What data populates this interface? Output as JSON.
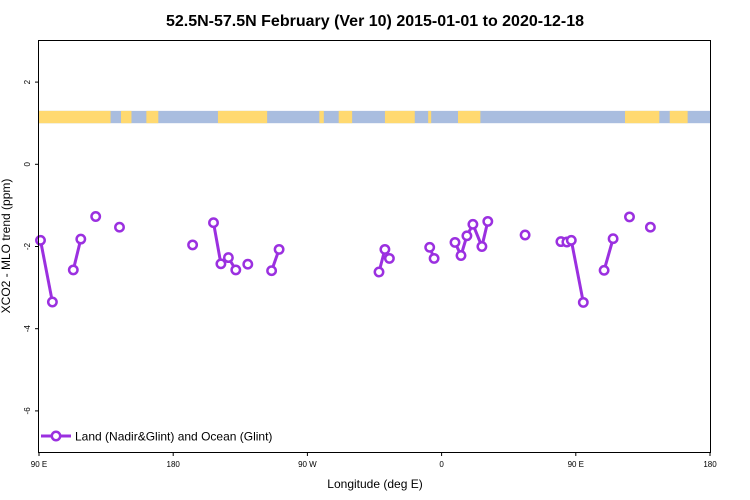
{
  "chart_data": {
    "type": "line",
    "title": "52.5N-57.5N February (Ver 10)   2015-01-01 to 2020-12-18",
    "xlabel": "Longitude (deg E)",
    "ylabel": "XCO2 - MLO trend (ppm)",
    "xlim": [
      90,
      540
    ],
    "ylim": [
      -7,
      3
    ],
    "x_ticks": [
      {
        "value": 90,
        "label": "90 E"
      },
      {
        "value": 180,
        "label": "180"
      },
      {
        "value": 270,
        "label": "90 W"
      },
      {
        "value": 360,
        "label": "0"
      },
      {
        "value": 450,
        "label": "90 E"
      },
      {
        "value": 540,
        "label": "180"
      }
    ],
    "y_ticks": [
      {
        "value": 2,
        "label": "2"
      },
      {
        "value": 0,
        "label": "0"
      },
      {
        "value": -2,
        "label": "-2"
      },
      {
        "value": -4,
        "label": "-4"
      },
      {
        "value": -6,
        "label": "-6"
      }
    ],
    "grid": false,
    "legend_position": "bottom-left",
    "series": [
      {
        "name": "Land (Nadir&Glint) and Ocean (Glint)",
        "color": "#9b30e0",
        "segments": [
          [
            [
              91,
              -1.85
            ],
            [
              99,
              -3.35
            ]
          ],
          [
            [
              113,
              -2.57
            ],
            [
              118,
              -1.82
            ]
          ],
          [
            [
              128,
              -1.27
            ]
          ],
          [
            [
              144,
              -1.53
            ]
          ],
          [
            [
              193,
              -1.96
            ]
          ],
          [
            [
              207,
              -1.42
            ],
            [
              212,
              -2.42
            ],
            [
              217,
              -2.27
            ],
            [
              222,
              -2.57
            ]
          ],
          [
            [
              230,
              -2.43
            ]
          ],
          [
            [
              246,
              -2.59
            ],
            [
              251,
              -2.07
            ]
          ],
          [
            [
              318,
              -2.62
            ],
            [
              322,
              -2.07
            ],
            [
              325,
              -2.29
            ]
          ],
          [
            [
              352,
              -2.02
            ],
            [
              355,
              -2.29
            ]
          ],
          [
            [
              369,
              -1.9
            ],
            [
              373,
              -2.22
            ],
            [
              377,
              -1.74
            ],
            [
              381,
              -1.46
            ],
            [
              387,
              -2.0
            ],
            [
              391,
              -1.39
            ]
          ],
          [
            [
              416,
              -1.72
            ]
          ],
          [
            [
              440,
              -1.88
            ],
            [
              444,
              -1.89
            ],
            [
              447,
              -1.85
            ],
            [
              455,
              -3.36
            ]
          ],
          [
            [
              469,
              -2.58
            ],
            [
              475,
              -1.81
            ]
          ],
          [
            [
              486,
              -1.28
            ]
          ],
          [
            [
              500,
              -1.53
            ]
          ]
        ]
      }
    ],
    "land_ocean_strip": {
      "y_range": [
        1.0,
        1.3
      ],
      "land_color": "#ffd970",
      "ocean_color": "#a9bddf",
      "land_intervals": [
        [
          90,
          138
        ],
        [
          145,
          152
        ],
        [
          162,
          170
        ],
        [
          210,
          243
        ],
        [
          278,
          281
        ],
        [
          291,
          300
        ],
        [
          322,
          342
        ],
        [
          351,
          353
        ],
        [
          371,
          386
        ],
        [
          483,
          506
        ],
        [
          513,
          525
        ]
      ]
    }
  }
}
